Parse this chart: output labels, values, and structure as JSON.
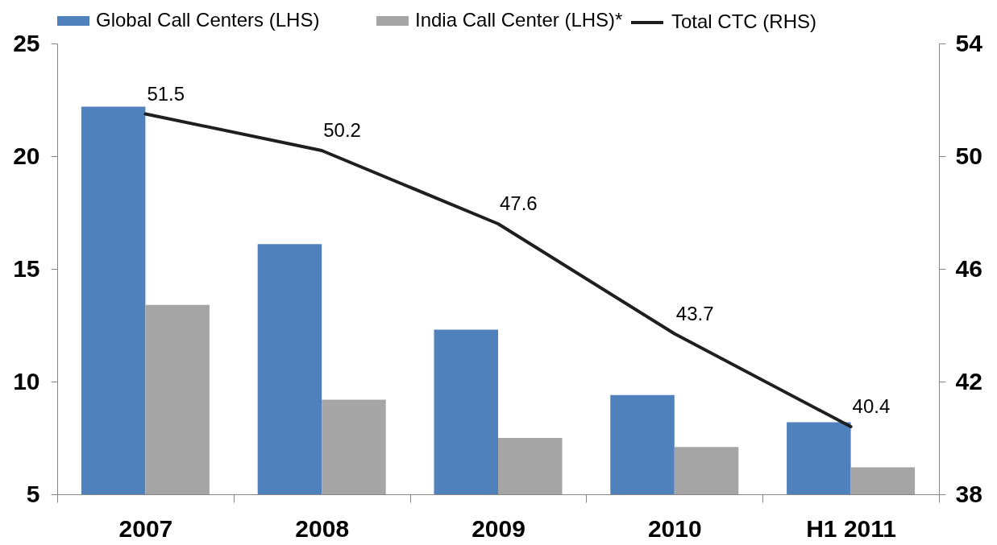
{
  "chart_data": {
    "type": "bar",
    "categories": [
      "2007",
      "2008",
      "2009",
      "2010",
      "H1 2011"
    ],
    "series": [
      {
        "name": "Global Call Centers (LHS)",
        "color": "#4f81bd",
        "values": [
          22.2,
          16.1,
          12.3,
          9.4,
          8.2
        ]
      },
      {
        "name": "India Call Center (LHS)*",
        "color": "#a5a5a5",
        "values": [
          13.4,
          9.2,
          7.5,
          7.1,
          6.2
        ]
      },
      {
        "name": "Total CTC (RHS)",
        "type": "line",
        "axis": "y2",
        "color": "#1f1f1f",
        "values": [
          51.5,
          50.2,
          47.6,
          43.7,
          40.4
        ],
        "value_labels": [
          "51.5",
          "50.2",
          "47.6",
          "43.7",
          "40.4"
        ]
      }
    ],
    "ylim": [
      5,
      25
    ],
    "yticks": [
      5,
      10,
      15,
      20,
      25
    ],
    "y2lim": [
      38,
      54
    ],
    "y2ticks": [
      38,
      42,
      46,
      50,
      54
    ],
    "legend": "top"
  }
}
